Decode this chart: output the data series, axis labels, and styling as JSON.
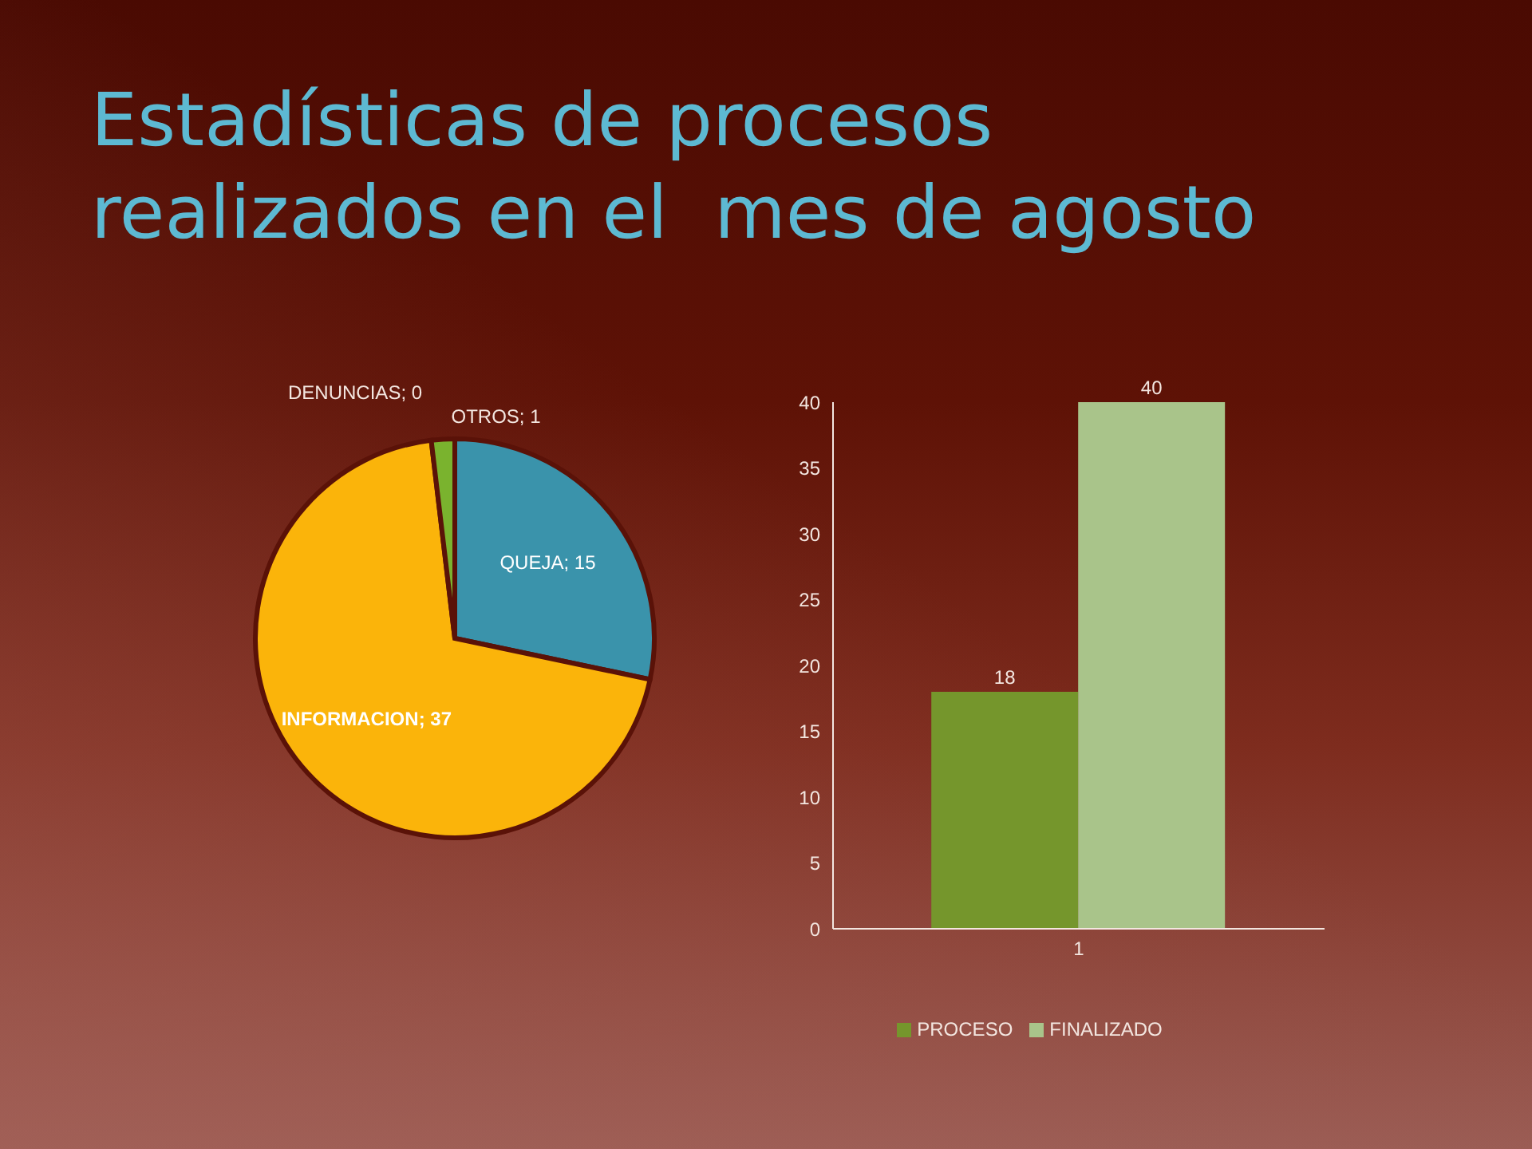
{
  "chart_data": [
    {
      "type": "pie",
      "title": "Estadísticas de procesos realizados en el  mes de agosto",
      "categories": [
        "QUEJA",
        "INFORMACION",
        "DENUNCIAS",
        "OTROS"
      ],
      "values": [
        15,
        37,
        0,
        1
      ],
      "colors": [
        "#3a93ab",
        "#fbb40a",
        "#c0504d",
        "#7ab32e"
      ],
      "value_labels": [
        "; 15",
        "; 37",
        "; 0",
        "; 1"
      ]
    },
    {
      "type": "bar",
      "categories": [
        "1"
      ],
      "series": [
        {
          "name": "PROCESO",
          "color": "#75962c",
          "values": [
            18
          ]
        },
        {
          "name": "FINALIZADO",
          "color": "#a9c48a",
          "values": [
            40
          ]
        }
      ],
      "ylim": [
        0,
        40
      ],
      "yticks": [
        0,
        5,
        10,
        15,
        20,
        25,
        30,
        35,
        40
      ],
      "data_labels": true,
      "legend": "bottom"
    }
  ]
}
